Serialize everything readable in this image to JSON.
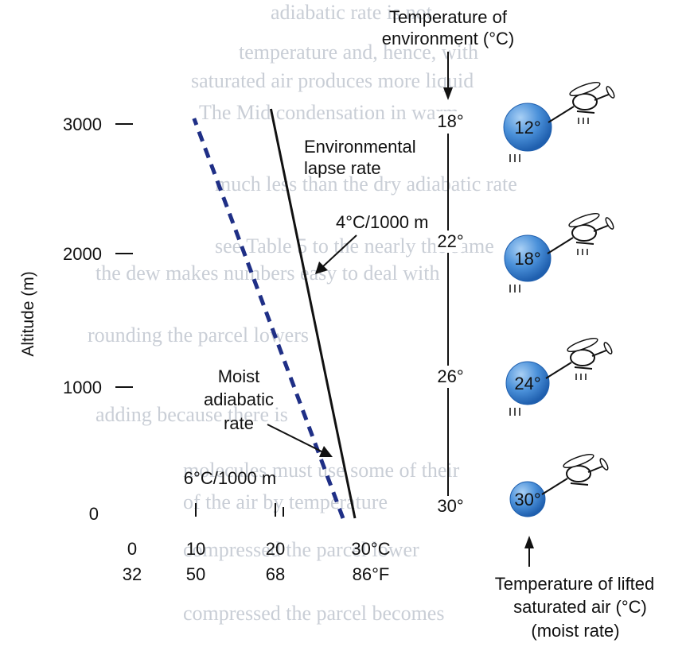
{
  "axis": {
    "ylabel": "Altitude (m)",
    "yticks": [
      "3000",
      "2000",
      "1000",
      "0"
    ],
    "xticks_c": [
      "0",
      "10",
      "20",
      "30°C"
    ],
    "xticks_f": [
      "32",
      "50",
      "68",
      "86°F"
    ]
  },
  "labels": {
    "env_title": [
      "Environmental",
      "lapse rate"
    ],
    "env_rate": "4°C/1000 m",
    "moist_title": [
      "Moist",
      "adiabatic",
      "rate"
    ],
    "moist_rate": "6°C/1000 m",
    "env_temp_header": [
      "Temperature of",
      "environment (°C)"
    ],
    "parcel_header": [
      "Temperature of lifted",
      "saturated air (°C)",
      "(moist rate)"
    ]
  },
  "environment_temps": [
    {
      "altitude": 3000,
      "temp": "18°"
    },
    {
      "altitude": 2000,
      "temp": "22°"
    },
    {
      "altitude": 1000,
      "temp": "26°"
    },
    {
      "altitude": 0,
      "temp": "30°"
    }
  ],
  "parcel_temps": [
    {
      "altitude": 3000,
      "temp": "12°"
    },
    {
      "altitude": 2000,
      "temp": "18°"
    },
    {
      "altitude": 1000,
      "temp": "24°"
    },
    {
      "altitude": 0,
      "temp": "30°"
    }
  ],
  "lines": {
    "environmental": {
      "surface_temp_c": 30,
      "top_temp_c": 18,
      "top_altitude_m": 3000
    },
    "moist": {
      "surface_temp_c": 30,
      "top_temp_c": 12,
      "top_altitude_m": 3000
    }
  },
  "colors": {
    "moist_line": "#1f2f86",
    "env_line": "#111111",
    "parcel_fill": "#4a90d9",
    "parcel_highlight": "#a9d0f5"
  },
  "icons": [
    "helicopter-icon"
  ]
}
